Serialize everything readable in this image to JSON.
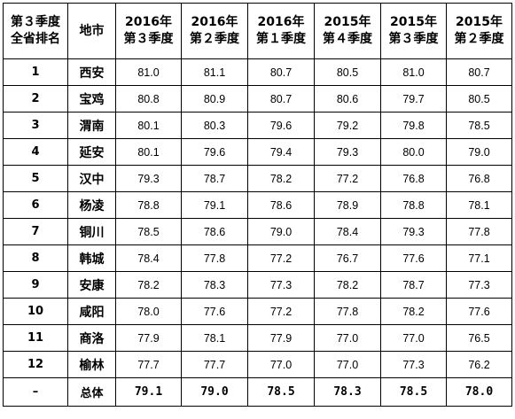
{
  "table": {
    "headers": [
      [
        "第３季度",
        "全省排名"
      ],
      [
        "地市"
      ],
      [
        "2016年",
        "第３季度"
      ],
      [
        "2016年",
        "第２季度"
      ],
      [
        "2016年",
        "第１季度"
      ],
      [
        "2015年",
        "第４季度"
      ],
      [
        "2015年",
        "第３季度"
      ],
      [
        "2015年",
        "第２季度"
      ]
    ],
    "rows": [
      {
        "rank": "1",
        "city": "西安",
        "values": [
          "81.0",
          "81.1",
          "80.7",
          "80.5",
          "81.0",
          "80.7"
        ]
      },
      {
        "rank": "2",
        "city": "宝鸡",
        "values": [
          "80.8",
          "80.9",
          "80.7",
          "80.6",
          "79.7",
          "80.5"
        ]
      },
      {
        "rank": "3",
        "city": "渭南",
        "values": [
          "80.1",
          "80.3",
          "79.6",
          "79.2",
          "79.8",
          "78.5"
        ]
      },
      {
        "rank": "4",
        "city": "延安",
        "values": [
          "80.1",
          "79.6",
          "79.4",
          "79.3",
          "80.0",
          "79.0"
        ]
      },
      {
        "rank": "5",
        "city": "汉中",
        "values": [
          "79.3",
          "78.7",
          "78.2",
          "77.2",
          "76.8",
          "76.8"
        ]
      },
      {
        "rank": "6",
        "city": "杨凌",
        "values": [
          "78.8",
          "79.1",
          "78.6",
          "78.9",
          "78.8",
          "78.1"
        ]
      },
      {
        "rank": "7",
        "city": "铜川",
        "values": [
          "78.5",
          "78.6",
          "79.0",
          "78.4",
          "79.3",
          "77.8"
        ]
      },
      {
        "rank": "8",
        "city": "韩城",
        "values": [
          "78.4",
          "77.8",
          "77.2",
          "76.7",
          "77.6",
          "77.1"
        ]
      },
      {
        "rank": "9",
        "city": "安康",
        "values": [
          "78.2",
          "78.3",
          "77.3",
          "78.2",
          "78.7",
          "77.3"
        ]
      },
      {
        "rank": "10",
        "city": "咸阳",
        "values": [
          "78.0",
          "77.6",
          "77.2",
          "77.8",
          "78.2",
          "77.6"
        ]
      },
      {
        "rank": "11",
        "city": "商洛",
        "values": [
          "77.9",
          "78.1",
          "77.9",
          "77.0",
          "77.0",
          "76.5"
        ]
      },
      {
        "rank": "12",
        "city": "榆林",
        "values": [
          "77.7",
          "77.7",
          "77.0",
          "77.0",
          "77.3",
          "76.2"
        ]
      }
    ],
    "total": {
      "rank": "–",
      "city": "总体",
      "values": [
        "79.1",
        "79.0",
        "78.5",
        "78.3",
        "78.5",
        "78.0"
      ]
    }
  }
}
